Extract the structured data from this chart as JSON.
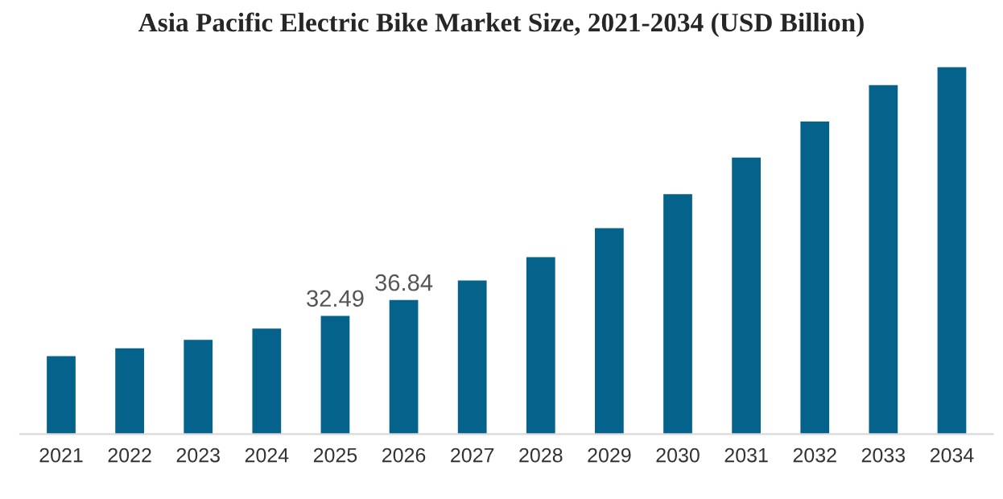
{
  "chart_data": {
    "type": "bar",
    "title": "Asia Pacific Electric Bike Market Size, 2021-2034 (USD Billion)",
    "categories": [
      "2021",
      "2022",
      "2023",
      "2024",
      "2025",
      "2026",
      "2027",
      "2028",
      "2029",
      "2030",
      "2031",
      "2032",
      "2033",
      "2034"
    ],
    "values": [
      21.4,
      23.6,
      25.9,
      29.0,
      32.49,
      36.84,
      42.2,
      48.6,
      56.6,
      65.9,
      76.0,
      85.9,
      95.9,
      100.8
    ],
    "value_labels": [
      null,
      null,
      null,
      null,
      "32.49",
      "36.84",
      null,
      null,
      null,
      null,
      null,
      null,
      null,
      null
    ],
    "color": "#05628a",
    "grid": false,
    "legend": false
  }
}
